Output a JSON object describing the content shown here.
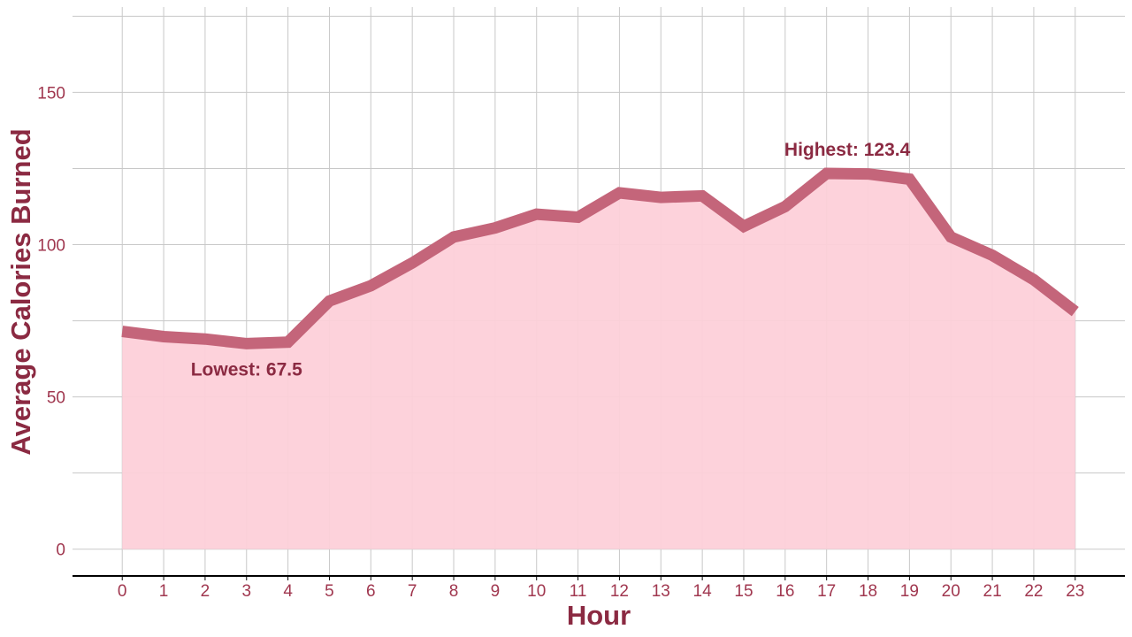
{
  "chart_data": {
    "type": "area",
    "title": "",
    "xlabel": "Hour",
    "ylabel": "Average Calories Burned",
    "x": [
      0,
      1,
      2,
      3,
      4,
      5,
      6,
      7,
      8,
      9,
      10,
      11,
      12,
      13,
      14,
      15,
      16,
      17,
      18,
      19,
      20,
      21,
      22,
      23
    ],
    "series": [
      {
        "values": [
          71.5,
          69.8,
          69.0,
          67.5,
          68.0,
          81.5,
          86.5,
          94.0,
          102.5,
          105.5,
          110.0,
          109.0,
          117.0,
          115.5,
          116.0,
          106.0,
          112.5,
          123.4,
          123.2,
          121.5,
          102.5,
          96.5,
          88.5,
          78.0
        ]
      }
    ],
    "xlim": [
      -1.2,
      24.2
    ],
    "ylim": [
      -8.5,
      178
    ],
    "yticks": [
      0,
      50,
      100,
      150
    ],
    "grid": true,
    "annotations": [
      {
        "label": "Lowest: 67.5",
        "x": 3,
        "y": 67.5
      },
      {
        "label": "Highest: 123.4",
        "x": 17.5,
        "y": 123.4
      }
    ],
    "colors": {
      "line": "#c4657a",
      "fill": "#fdd0d9",
      "text": "#8b2a42",
      "tick": "#a0374f"
    }
  }
}
